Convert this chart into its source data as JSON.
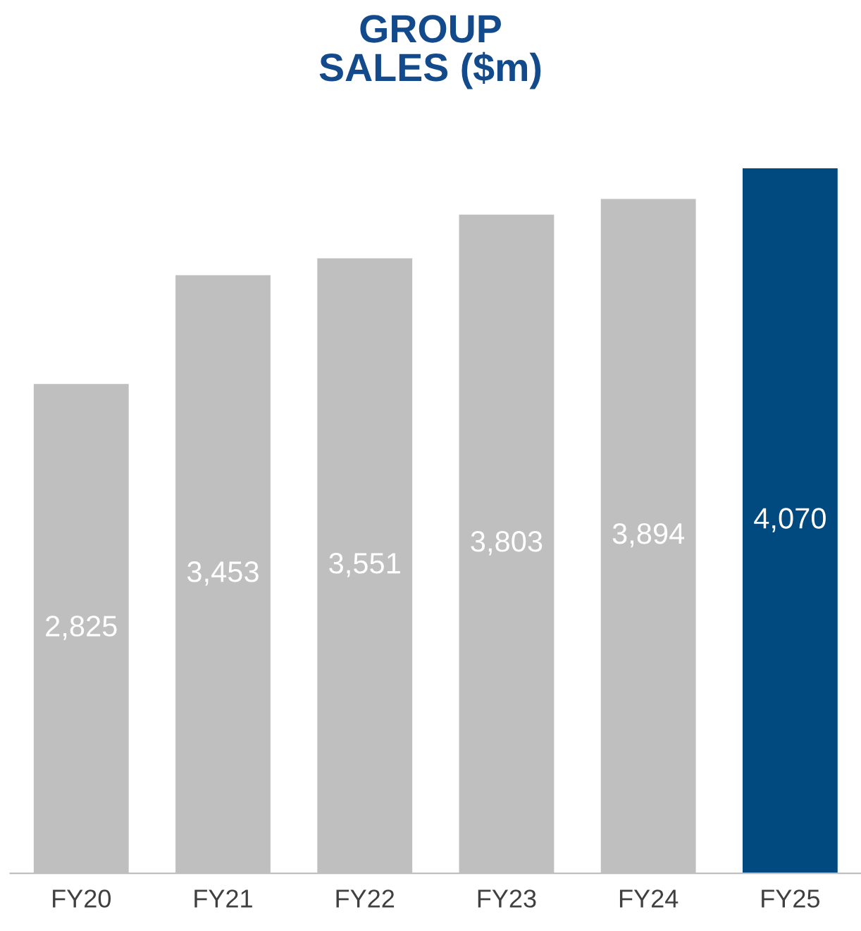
{
  "chart_data": {
    "type": "bar",
    "title": "GROUP\nSALES ($m)",
    "categories": [
      "FY20",
      "FY21",
      "FY22",
      "FY23",
      "FY24",
      "FY25"
    ],
    "values": [
      2825,
      3453,
      3551,
      3803,
      3894,
      4070
    ],
    "colors": [
      "#bfbfbf",
      "#bfbfbf",
      "#bfbfbf",
      "#bfbfbf",
      "#bfbfbf",
      "#004a80"
    ],
    "value_labels": [
      "2,825",
      "3,453",
      "3,551",
      "3,803",
      "3,894",
      "4,070"
    ],
    "tick_labels": "x",
    "grid": false,
    "legend": false
  }
}
